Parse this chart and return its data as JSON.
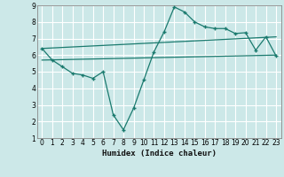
{
  "xlabel": "Humidex (Indice chaleur)",
  "bg_color": "#cce8e8",
  "grid_color": "#ffffff",
  "line_color": "#1a7a6e",
  "xlim": [
    -0.5,
    23.5
  ],
  "ylim": [
    1,
    9
  ],
  "yticks": [
    1,
    2,
    3,
    4,
    5,
    6,
    7,
    8,
    9
  ],
  "xticks": [
    0,
    1,
    2,
    3,
    4,
    5,
    6,
    7,
    8,
    9,
    10,
    11,
    12,
    13,
    14,
    15,
    16,
    17,
    18,
    19,
    20,
    21,
    22,
    23
  ],
  "line1_x": [
    0,
    1,
    2,
    3,
    4,
    5,
    6,
    7,
    8,
    9,
    10,
    11,
    12,
    13,
    14,
    15,
    16,
    17,
    18,
    19,
    20,
    21,
    22,
    23
  ],
  "line1_y": [
    6.4,
    5.7,
    5.3,
    4.9,
    4.8,
    4.6,
    5.0,
    2.4,
    1.5,
    2.8,
    4.5,
    6.2,
    7.4,
    8.9,
    8.6,
    8.0,
    7.7,
    7.6,
    7.6,
    7.3,
    7.35,
    6.3,
    7.1,
    5.95
  ],
  "line2_x": [
    0,
    23
  ],
  "line2_y": [
    6.4,
    7.1
  ],
  "line3_x": [
    0,
    23
  ],
  "line3_y": [
    5.7,
    6.0
  ]
}
